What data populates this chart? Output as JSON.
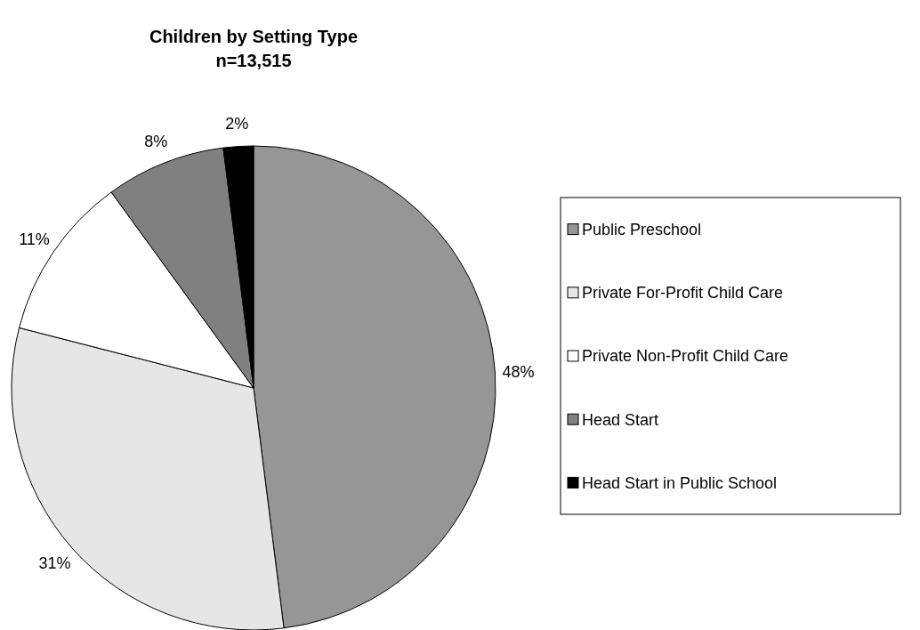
{
  "chart_data": {
    "type": "pie",
    "title": "Children by Setting Type\nn=13,515",
    "categories": [
      "Public Preschool",
      "Private For-Profit Child Care",
      "Private Non-Profit Child Care",
      "Head Start",
      "Head Start in Public School"
    ],
    "values": [
      48,
      31,
      11,
      8,
      2
    ],
    "colors": [
      "#969696",
      "#e6e6e6",
      "#ffffff",
      "#808080",
      "#000000"
    ],
    "value_labels": [
      "48%",
      "31%",
      "11%",
      "8%",
      "2%"
    ],
    "legend": "right"
  }
}
